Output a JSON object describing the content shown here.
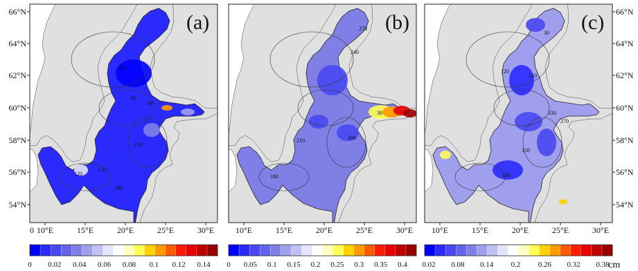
{
  "panels": [
    {
      "label": "(a)",
      "lon_ticks": [
        "10°E",
        "15°E",
        "20°E",
        "25°E",
        "30°E"
      ],
      "extra_lon_tick": "0",
      "lat_ticks": [
        "54°N",
        "56°N",
        "58°N",
        "60°N",
        "62°N",
        "64°N",
        "66°N"
      ],
      "lat_side": "left",
      "contours": [
        "30",
        "60",
        "90",
        "120",
        "150",
        "180",
        "210"
      ],
      "colorbar": {
        "ticks": [
          "0",
          "0.02",
          "0.04",
          "0.06",
          "0.08",
          "0.1",
          "0.12",
          "0.14"
        ],
        "unit": ""
      }
    },
    {
      "label": "(b)",
      "lon_ticks": [
        "10°E",
        "15°E",
        "20°E",
        "25°E",
        "30°E"
      ],
      "extra_lon_tick": "",
      "lat_ticks": [],
      "lat_side": "none",
      "contours": [
        "270",
        "240",
        "30",
        "300",
        "180",
        "210"
      ],
      "colorbar": {
        "ticks": [
          "0",
          "0.05",
          "0.1",
          "0.15",
          "0.2",
          "0.25",
          "0.3",
          "0.35",
          "0.4"
        ],
        "unit": ""
      }
    },
    {
      "label": "(c)",
      "lon_ticks": [
        "10°E",
        "15°E",
        "20°E",
        "25°E",
        "30°E"
      ],
      "extra_lon_tick": "",
      "lat_ticks": [
        "54°N",
        "56°N",
        "58°N",
        "60°N",
        "62°N",
        "64°N",
        "66°N"
      ],
      "lat_side": "right",
      "contours": [
        "30",
        "120",
        "210",
        "330",
        "270",
        "180",
        "150"
      ],
      "colorbar": {
        "ticks": [
          "0.02",
          "0.08",
          "0.14",
          "0.2",
          "0.26",
          "0.32",
          "0.38"
        ],
        "unit": "cm"
      }
    }
  ],
  "colors": {
    "land": "#e0e0e0",
    "frame": "#222222",
    "palette": [
      "#0000ff",
      "#2a2aff",
      "#4848f2",
      "#6262ea",
      "#7f7fe6",
      "#9f9fee",
      "#c0c0f4",
      "#e4e4fa",
      "#ffffff",
      "#ffffc0",
      "#ffff55",
      "#ffd200",
      "#ff9a00",
      "#ff5a00",
      "#ff1a00",
      "#e60000",
      "#c00000",
      "#990000"
    ]
  }
}
